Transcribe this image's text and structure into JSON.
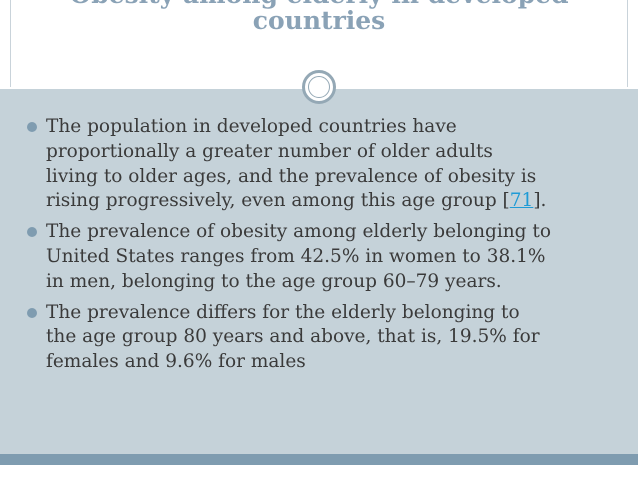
{
  "slide": {
    "title_line1": "Obesity among elderly in developed",
    "title_line2": "countries",
    "bullets": [
      {
        "lines": [
          "The population in developed countries have",
          "proportionally a greater number of older adults",
          "living to older ages, and the prevalence of obesity is"
        ],
        "last_prefix": "rising progressively, even among this age group [",
        "ref": "71",
        "last_suffix": "]."
      },
      {
        "lines": [
          "The prevalence of obesity among elderly belonging to",
          "United States ranges from 42.5% in women to 38.1%",
          "in men, belonging to the age group 60–79 years."
        ]
      },
      {
        "lines": [
          "The prevalence differs for the elderly belonging to",
          "the age group 80 years and above, that is, 19.5% for",
          "females and 9.6% for males"
        ]
      }
    ]
  },
  "colors": {
    "title": "#8aa2b6",
    "body_background": "#c5d2d9",
    "accent_bar": "#7f9cb0",
    "bullet_marker": "#7f9cb0",
    "text": "#3a3a3a",
    "link": "#1f9bd6"
  },
  "icons": {
    "title_divider": "circle-ornament-icon",
    "bullet": "bullet-dot-icon"
  }
}
